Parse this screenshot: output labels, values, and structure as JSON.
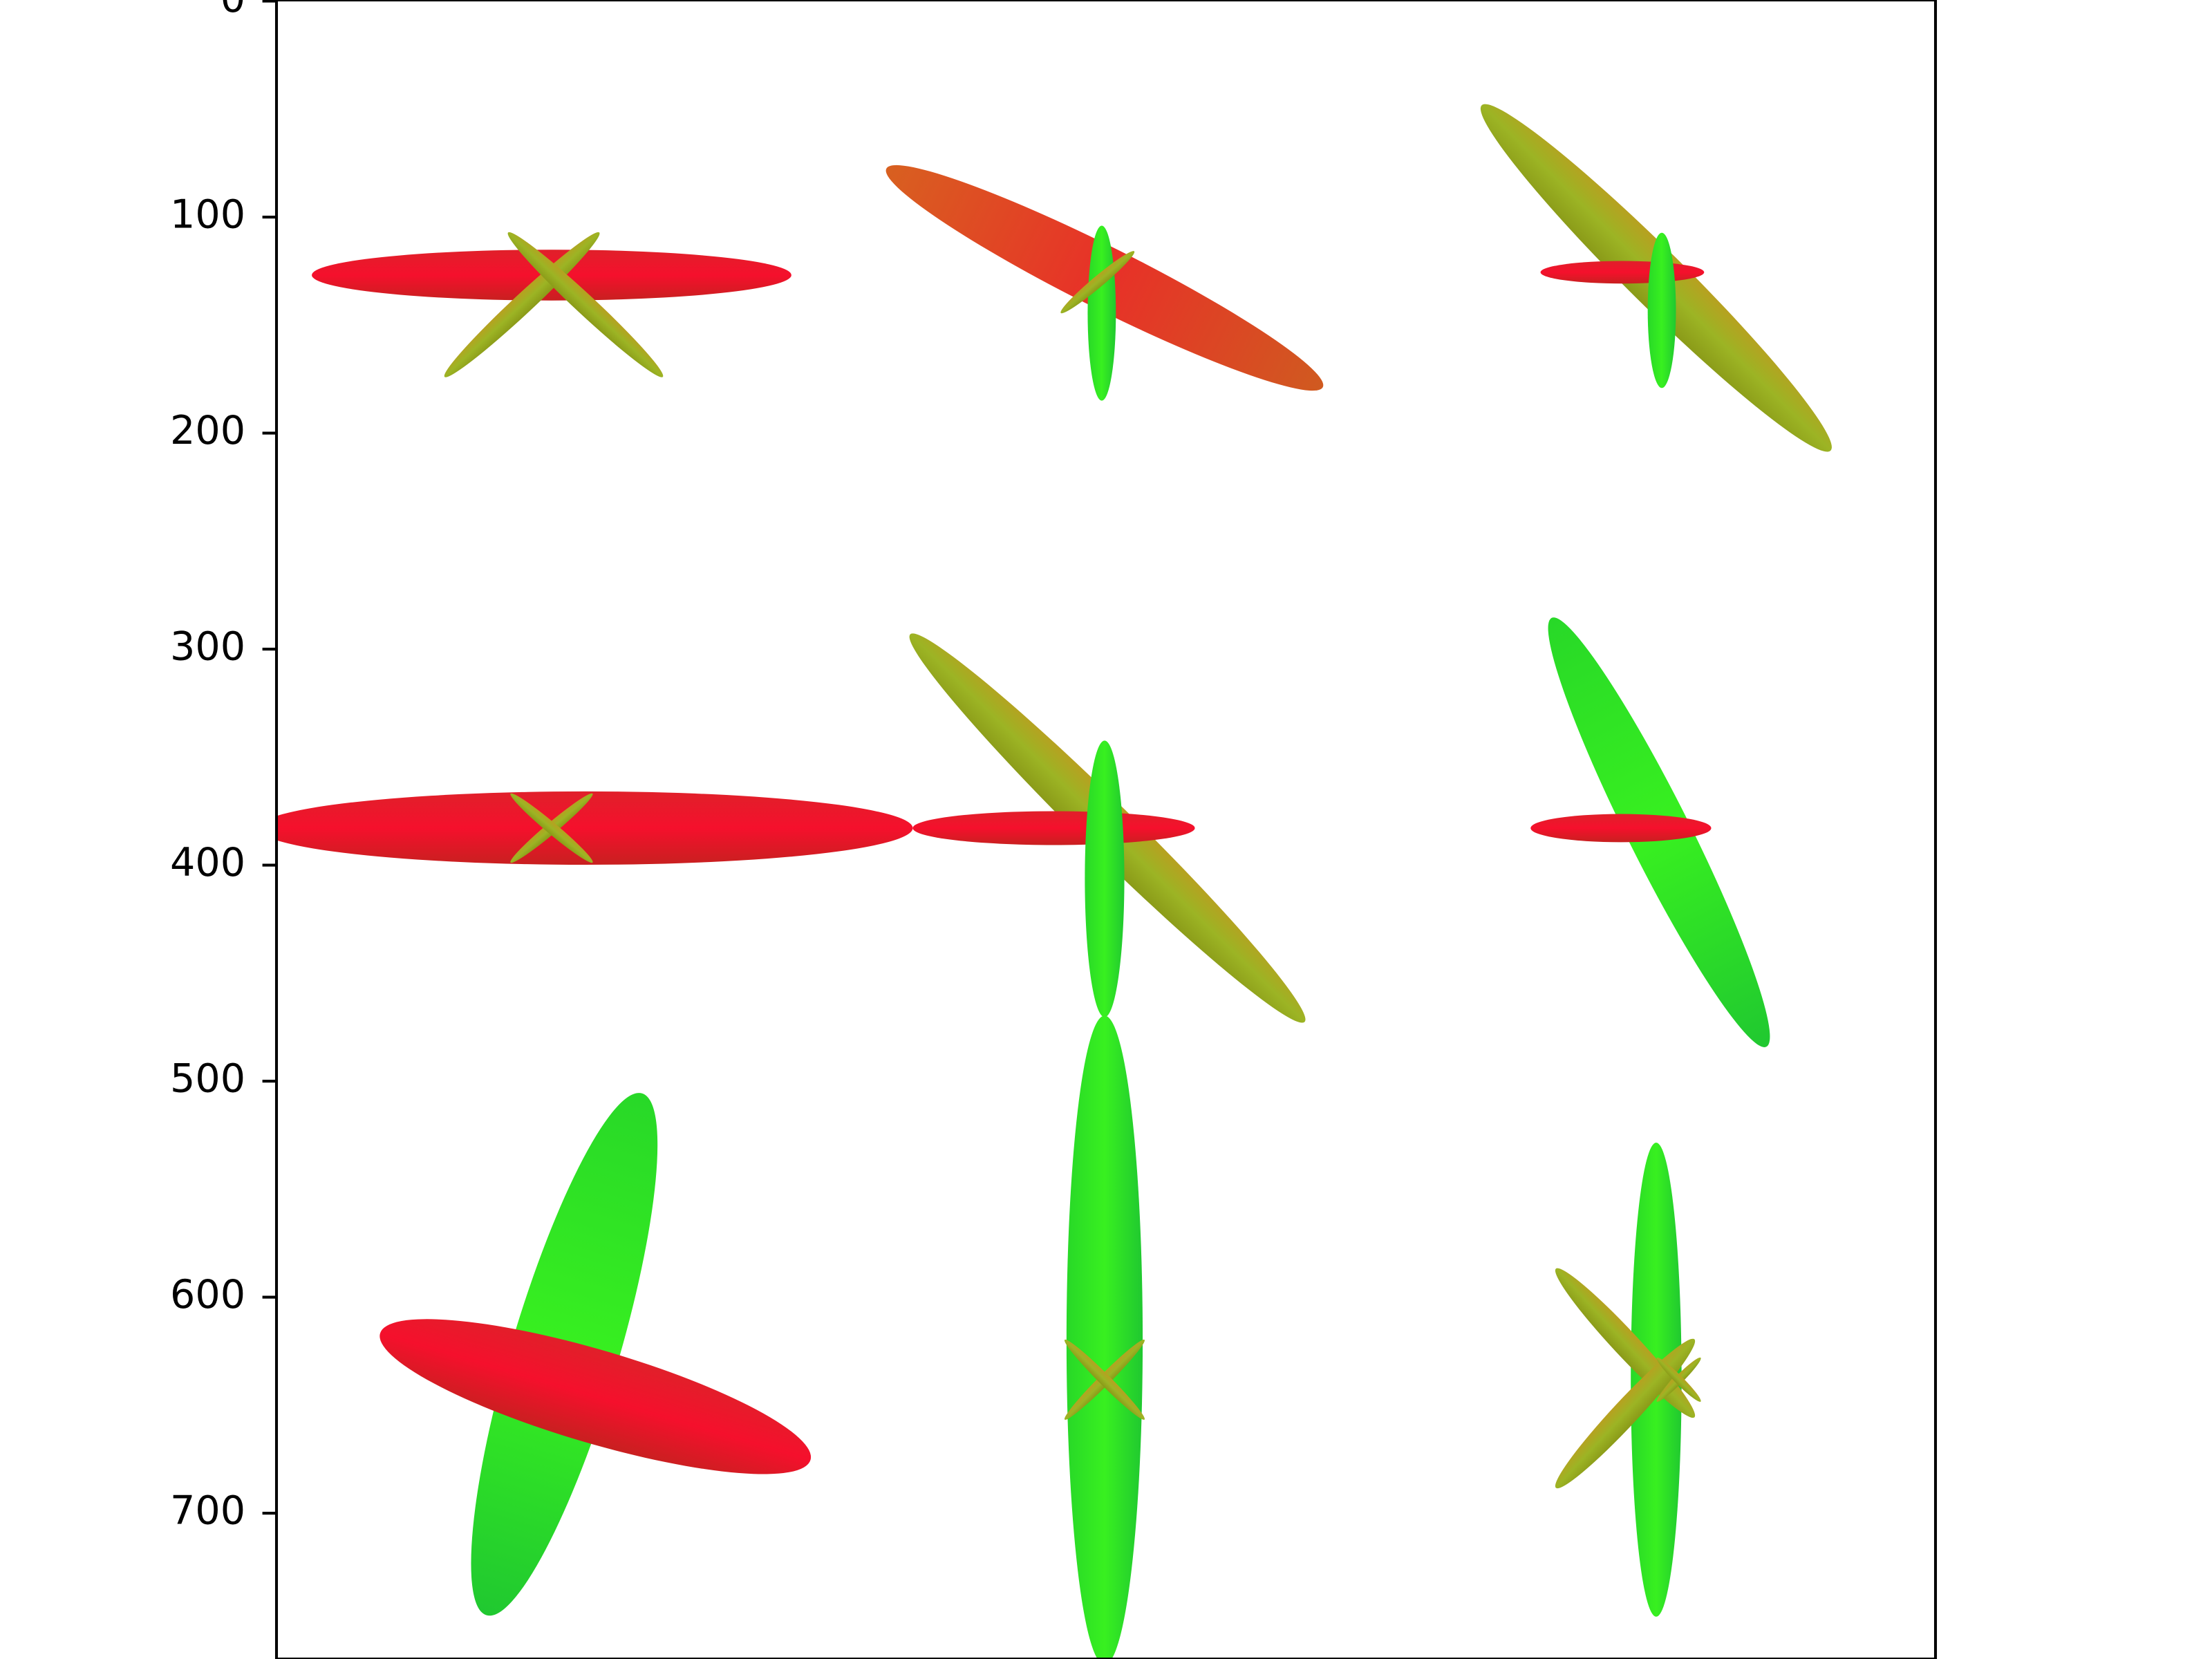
{
  "chart_data": {
    "type": "image",
    "ylim": [
      767.5,
      -0.5
    ],
    "yticks": [
      0,
      100,
      200,
      300,
      400,
      500,
      600,
      700
    ]
  }
}
